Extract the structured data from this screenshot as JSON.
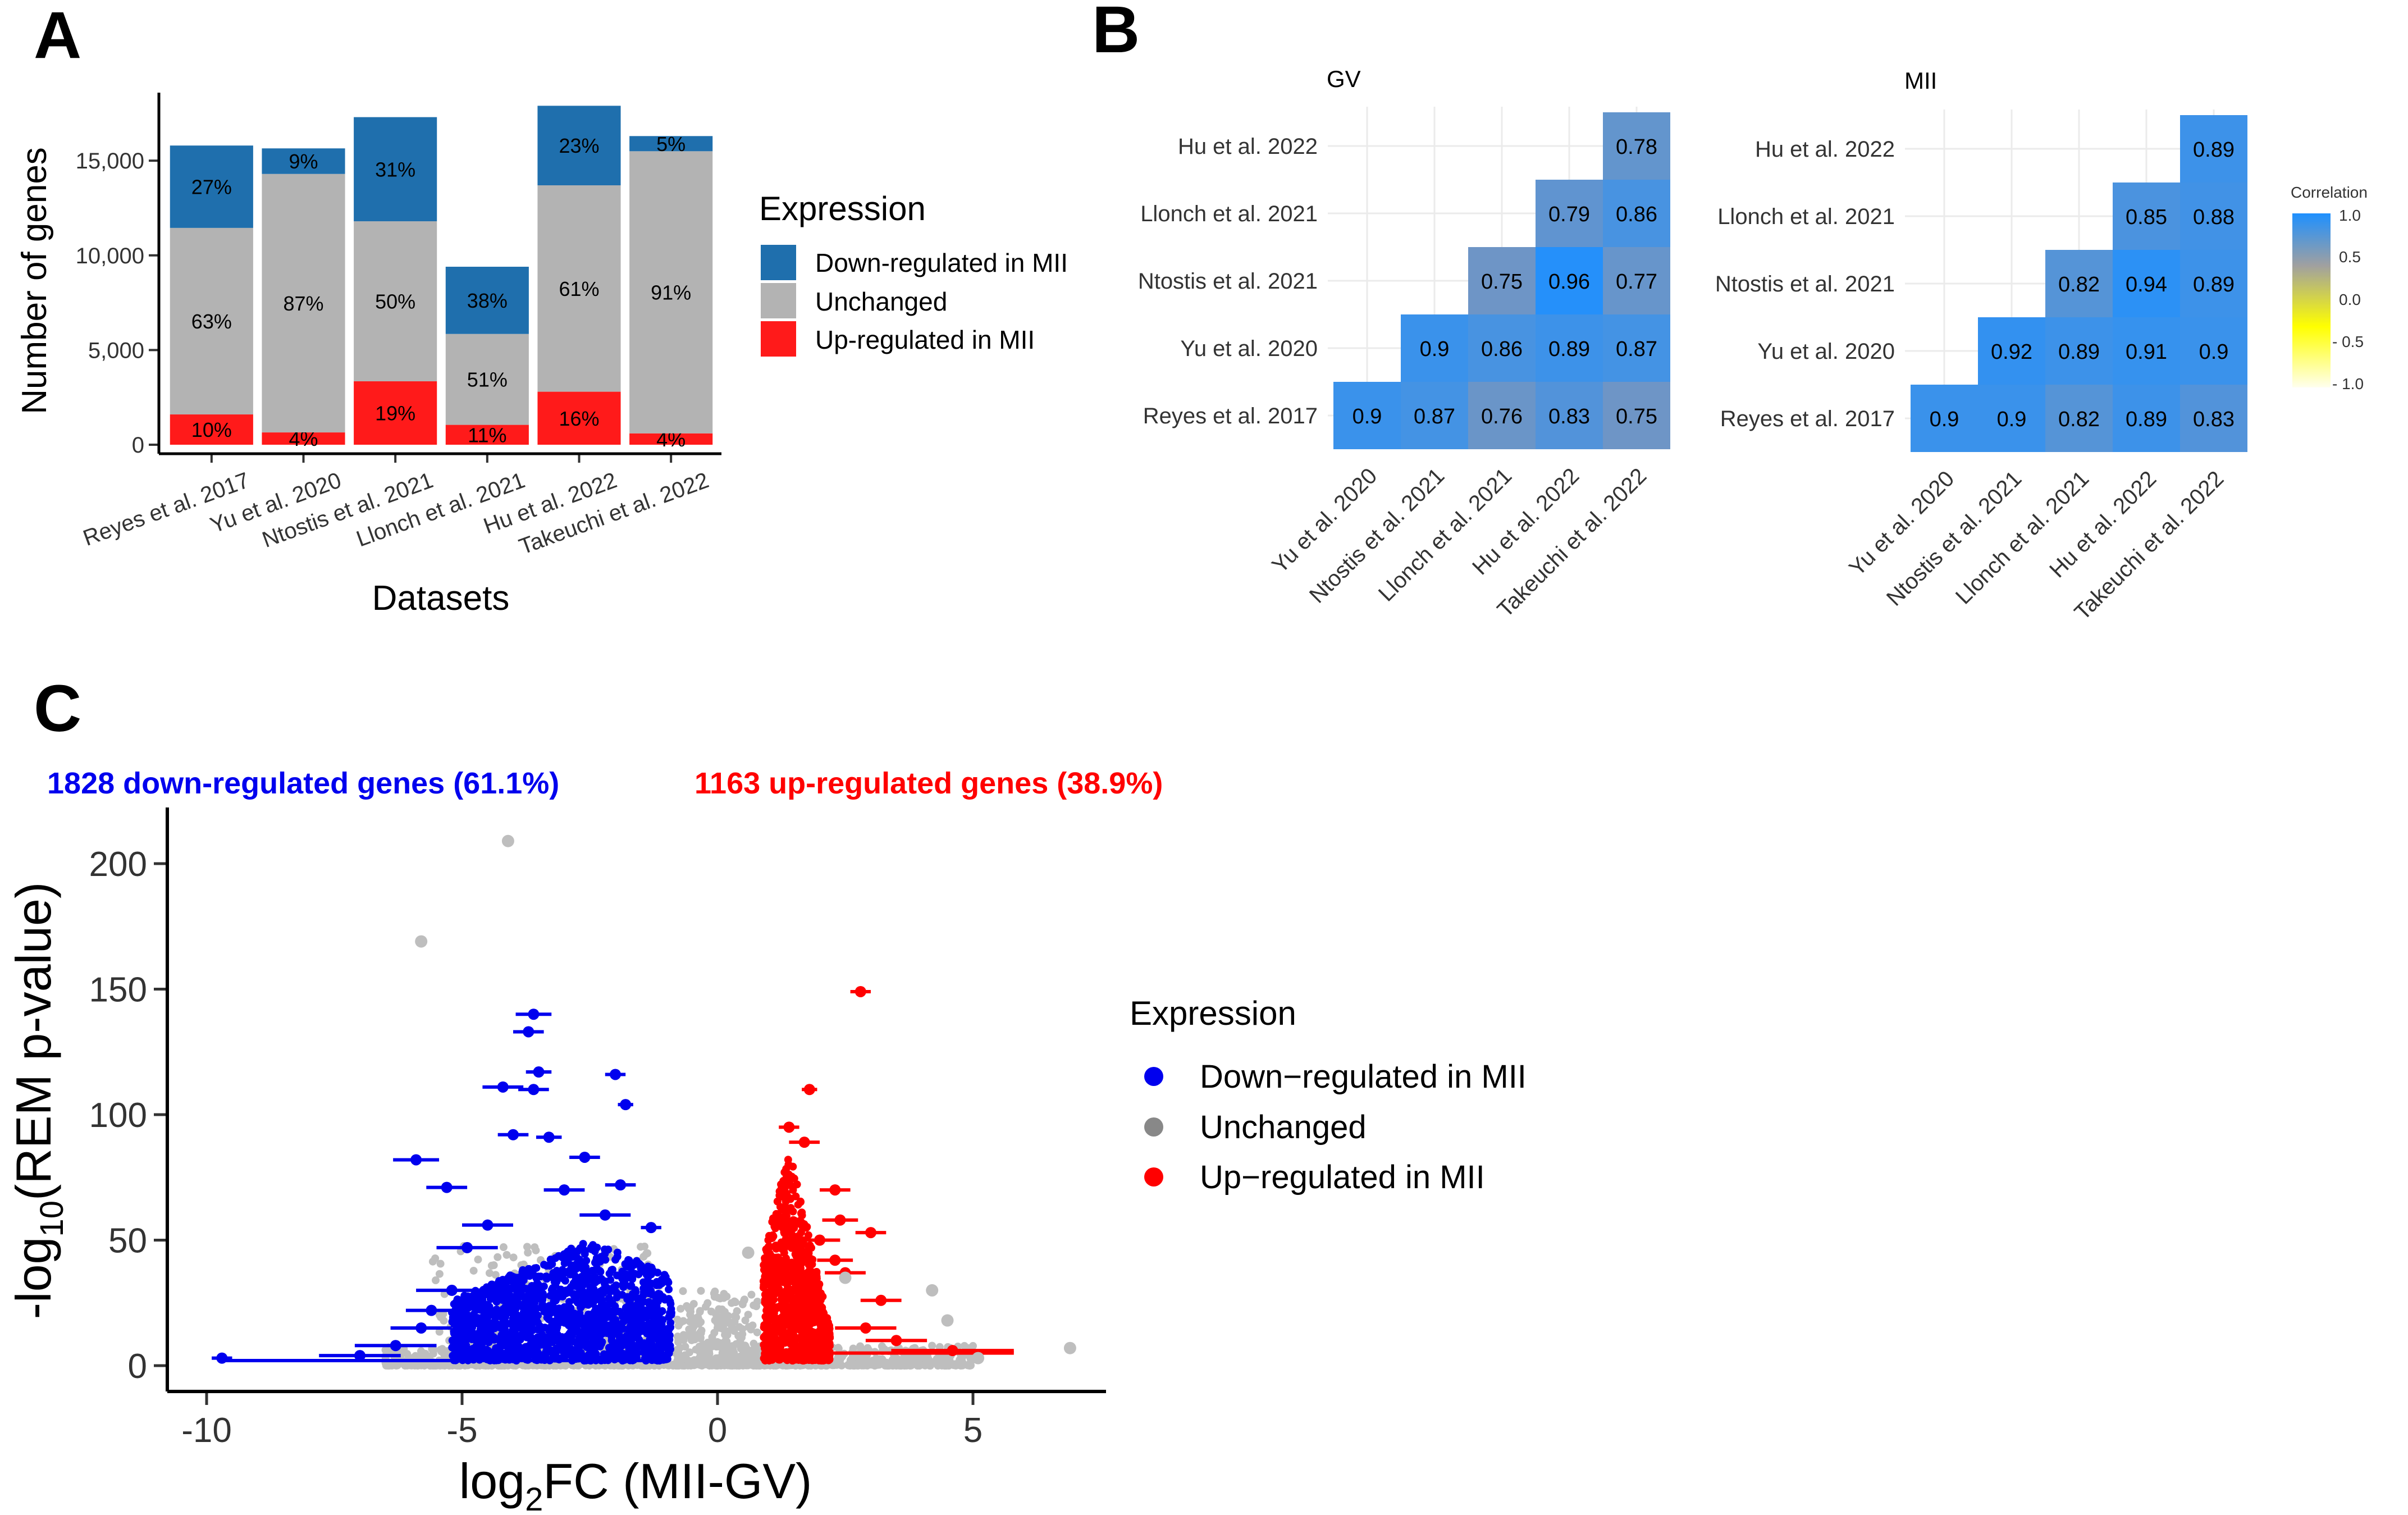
{
  "panels": {
    "a": {
      "letter": "A"
    },
    "b": {
      "letter": "B"
    },
    "c": {
      "letter": "C"
    }
  },
  "colors": {
    "down_bar": "#1f6fad",
    "unchanged_bar": "#b3b3b3",
    "up_bar": "#ff1a1a",
    "down_point": "#0000ee",
    "unchanged_point": "#bebebe",
    "up_point": "#ff0000",
    "heat_high": "#1e90ff",
    "heat_mid": "#b0b0b0"
  },
  "chart_data": [
    {
      "id": "A",
      "type": "bar",
      "stacked": true,
      "title": "",
      "xlabel": "Datasets",
      "ylabel": "Number of genes",
      "ylim": [
        0,
        18500
      ],
      "yticks": [
        0,
        5000,
        10000,
        15000
      ],
      "ytick_labels": [
        "0",
        "5,000",
        "10,000",
        "15,000"
      ],
      "categories": [
        "Reyes et al. 2017",
        "Yu et al. 2020",
        "Ntostis et al. 2021",
        "Llonch et al. 2021",
        "Hu et al. 2022",
        "Takeuchi et al. 2022"
      ],
      "series": [
        {
          "name": "Up-regulated in MII",
          "values": [
            1600,
            650,
            3350,
            1050,
            2800,
            600
          ],
          "labels": [
            "10%",
            "4%",
            "19%",
            "11%",
            "16%",
            "4%"
          ]
        },
        {
          "name": "Unchanged",
          "values": [
            9850,
            13650,
            8450,
            4800,
            10900,
            14900
          ],
          "labels": [
            "63%",
            "87%",
            "50%",
            "51%",
            "61%",
            "91%"
          ]
        },
        {
          "name": "Down-regulated in MII",
          "values": [
            4350,
            1350,
            5500,
            3550,
            4200,
            800
          ],
          "labels": [
            "27%",
            "9%",
            "31%",
            "38%",
            "23%",
            "5%"
          ]
        }
      ],
      "legend": {
        "title": "Expression",
        "entries": [
          "Down-regulated in MII",
          "Unchanged",
          "Up-regulated in MII"
        ],
        "placement": "right"
      }
    },
    {
      "id": "B-GV",
      "type": "heatmap",
      "title": "GV",
      "rows": [
        "Hu et al. 2022",
        "Llonch et al. 2021",
        "Ntostis et al. 2021",
        "Yu et al. 2020",
        "Reyes et al. 2017"
      ],
      "columns": [
        "Yu et al. 2020",
        "Ntostis et al. 2021",
        "Llonch et al. 2021",
        "Hu et al. 2022",
        "Takeuchi et al. 2022"
      ],
      "values": [
        [
          null,
          null,
          null,
          null,
          0.78
        ],
        [
          null,
          null,
          null,
          0.79,
          0.86
        ],
        [
          null,
          null,
          0.75,
          0.96,
          0.77
        ],
        [
          null,
          0.9,
          0.86,
          0.89,
          0.87
        ],
        [
          0.9,
          0.87,
          0.76,
          0.83,
          0.75
        ]
      ]
    },
    {
      "id": "B-MII",
      "type": "heatmap",
      "title": "MII",
      "rows": [
        "Hu et al. 2022",
        "Llonch et al. 2021",
        "Ntostis et al. 2021",
        "Yu et al. 2020",
        "Reyes et al. 2017"
      ],
      "columns": [
        "Yu et al. 2020",
        "Ntostis et al. 2021",
        "Llonch et al. 2021",
        "Hu et al. 2022",
        "Takeuchi et al. 2022"
      ],
      "values": [
        [
          null,
          null,
          null,
          null,
          0.89
        ],
        [
          null,
          null,
          null,
          0.85,
          0.88
        ],
        [
          null,
          null,
          0.82,
          0.94,
          0.89
        ],
        [
          null,
          0.92,
          0.89,
          0.91,
          0.9
        ],
        [
          0.9,
          0.9,
          0.82,
          0.89,
          0.83
        ]
      ],
      "colorbar": {
        "title": "Correlation",
        "ticks": [
          "1.0",
          "0.5",
          "0.0",
          "- 0.5",
          "- 1.0"
        ]
      }
    },
    {
      "id": "C",
      "type": "scatter",
      "title": "",
      "xlabel": "log2FC (MII-GV)",
      "xlabel_parts": [
        "log",
        "2",
        "FC (MII-GV)"
      ],
      "ylabel": "-log10(REM p-value)",
      "ylabel_parts": [
        "-log",
        "10",
        "(REM p-value)"
      ],
      "xlim": [
        -10.5,
        7.7
      ],
      "ylim": [
        -8,
        222
      ],
      "xticks": [
        -10,
        -5,
        0,
        5
      ],
      "xtick_labels": [
        "-10",
        "-5",
        "0",
        "5"
      ],
      "yticks": [
        0,
        50,
        100,
        150,
        200
      ],
      "ytick_labels": [
        "0",
        "50",
        "100",
        "150",
        "200"
      ],
      "down_label": "1828 down-regulated genes (61.1%)",
      "up_label": "1163 up-regulated genes (38.9%)",
      "legend": {
        "title": "Expression",
        "entries": [
          "Down−regulated in MII",
          "Unchanged",
          "Up−regulated in MII"
        ],
        "placement": "right"
      },
      "highlighted_points": {
        "down": [
          [
            -3.6,
            140,
            0.35
          ],
          [
            -3.7,
            133,
            0.3
          ],
          [
            -3.5,
            117,
            0.25
          ],
          [
            -2.0,
            116,
            0.2
          ],
          [
            -4.2,
            111,
            0.4
          ],
          [
            -3.6,
            110,
            0.3
          ],
          [
            -1.8,
            104,
            0.15
          ],
          [
            -5.9,
            82,
            0.45
          ],
          [
            -4.0,
            92,
            0.3
          ],
          [
            -3.3,
            91,
            0.25
          ],
          [
            -2.6,
            83,
            0.3
          ],
          [
            -5.3,
            71,
            0.4
          ],
          [
            -4.5,
            56,
            0.5
          ],
          [
            -3.0,
            70,
            0.4
          ],
          [
            -1.9,
            72,
            0.3
          ],
          [
            -1.3,
            55,
            0.2
          ],
          [
            -2.2,
            60,
            0.5
          ],
          [
            -4.9,
            47,
            0.6
          ],
          [
            -5.6,
            22,
            0.5
          ],
          [
            -5.8,
            15,
            0.6
          ],
          [
            -6.3,
            8,
            0.8
          ],
          [
            -7.0,
            4,
            0.8
          ],
          [
            -9.7,
            3,
            0.2
          ],
          [
            -5.2,
            30,
            0.7
          ]
        ],
        "up": [
          [
            2.8,
            149,
            0.2
          ],
          [
            1.8,
            110,
            0.15
          ],
          [
            1.4,
            95,
            0.2
          ],
          [
            1.7,
            89,
            0.3
          ],
          [
            2.3,
            70,
            0.3
          ],
          [
            3.0,
            53,
            0.3
          ],
          [
            2.4,
            58,
            0.35
          ],
          [
            2.0,
            50,
            0.4
          ],
          [
            2.3,
            42,
            0.35
          ],
          [
            2.5,
            37,
            0.4
          ],
          [
            3.2,
            26,
            0.4
          ],
          [
            2.9,
            15,
            0.6
          ],
          [
            3.5,
            10,
            0.6
          ],
          [
            4.6,
            6,
            1.2
          ]
        ]
      },
      "gray_outliers": [
        [
          -4.1,
          209
        ],
        [
          -5.8,
          169
        ],
        [
          6.9,
          7
        ],
        [
          4.2,
          30
        ],
        [
          4.5,
          18
        ],
        [
          5.1,
          3
        ],
        [
          2.5,
          35
        ],
        [
          0.6,
          45
        ]
      ]
    }
  ]
}
